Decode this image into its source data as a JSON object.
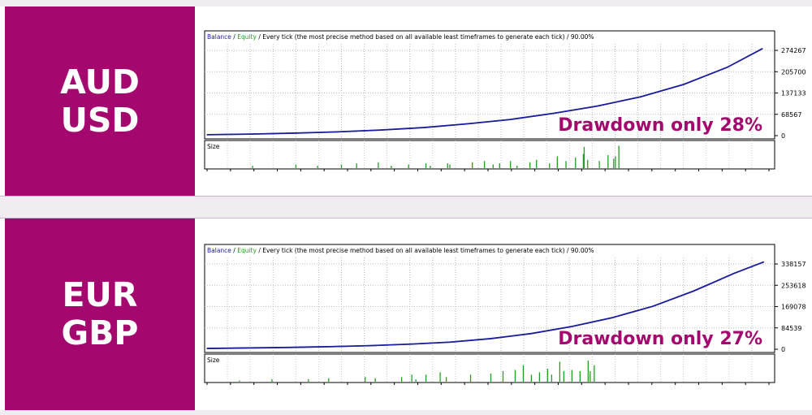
{
  "colors": {
    "brand": "#a4086f",
    "balance": "#1b1b9e",
    "equity": "#20a020",
    "drawdown_text": "#a4086f"
  },
  "header_parts": {
    "balance": "Balance",
    "sep": " / ",
    "equity": "Equity",
    "rest": " / Every tick (the most precise method based on all available least timeframes to generate each tick) / 90.00%"
  },
  "panels": [
    {
      "pair_line1": "AUD",
      "pair_line2": "USD",
      "drawdown_text": "Drawdown only 28%",
      "size_label": "Size"
    },
    {
      "pair_line1": "EUR",
      "pair_line2": "GBP",
      "drawdown_text": "Drawdown only 27%",
      "size_label": "Size"
    }
  ],
  "chart_data": [
    {
      "type": "line",
      "title": "Balance / Equity / Every tick (the most precise method based on all available least timeframes to generate each tick) / 90.00%",
      "series": [
        {
          "name": "Balance",
          "x": [
            0,
            100,
            200,
            300,
            400,
            500,
            600,
            700,
            800,
            900,
            1000,
            1100,
            1200,
            1281
          ],
          "y": [
            3000,
            5000,
            8000,
            12000,
            18000,
            26000,
            38000,
            52000,
            72000,
            95000,
            125000,
            165000,
            220000,
            280000
          ]
        },
        {
          "name": "Equity",
          "x": [
            0,
            100,
            200,
            300,
            400,
            500,
            600,
            700,
            800,
            900,
            1000,
            1100,
            1200,
            1281
          ],
          "y": [
            3000,
            5000,
            8000,
            12000,
            18000,
            26000,
            38000,
            52000,
            72000,
            95000,
            125000,
            165000,
            220000,
            280000
          ]
        }
      ],
      "ylim": [
        0,
        285000
      ],
      "xlim": [
        0,
        1300
      ],
      "yticks": [
        "274267",
        "205700",
        "137133",
        "68567",
        "0"
      ],
      "xticks": [
        "0",
        "60",
        "113",
        "166",
        "219",
        "272",
        "325",
        "378",
        "431",
        "484",
        "537",
        "591",
        "644",
        "697",
        "750",
        "803",
        "856",
        "909",
        "962",
        "1015",
        "1068",
        "1121",
        "1174",
        "1228",
        "1281"
      ],
      "size_subplot": {
        "label": "Size",
        "x": [
          105,
          205,
          255,
          310,
          345,
          395,
          425,
          465,
          505,
          515,
          555,
          560,
          612,
          640,
          660,
          675,
          700,
          715,
          745,
          760,
          790,
          808,
          828,
          850,
          868,
          870,
          878,
          905,
          925,
          938,
          942,
          950
        ],
        "values": [
          0.1,
          0.15,
          0.1,
          0.15,
          0.2,
          0.25,
          0.1,
          0.15,
          0.2,
          0.1,
          0.2,
          0.15,
          0.25,
          0.3,
          0.15,
          0.2,
          0.3,
          0.1,
          0.25,
          0.35,
          0.2,
          0.5,
          0.3,
          0.45,
          0.6,
          0.9,
          0.35,
          0.3,
          0.55,
          0.4,
          0.5,
          0.95
        ]
      },
      "grid": true
    },
    {
      "type": "line",
      "title": "Balance / Equity / Every tick (the most precise method based on all available least timeframes to generate each tick) / 90.00%",
      "series": [
        {
          "name": "Balance",
          "x": [
            0,
            100,
            200,
            300,
            400,
            500,
            600,
            700,
            800,
            900,
            1000,
            1100,
            1200,
            1300,
            1373
          ],
          "y": [
            3000,
            5000,
            7000,
            10000,
            14000,
            20000,
            28000,
            42000,
            62000,
            90000,
            125000,
            170000,
            230000,
            300000,
            345000
          ]
        },
        {
          "name": "Equity",
          "x": [
            0,
            100,
            200,
            300,
            400,
            500,
            600,
            700,
            800,
            900,
            1000,
            1100,
            1200,
            1300,
            1373
          ],
          "y": [
            3000,
            5000,
            7000,
            10000,
            14000,
            20000,
            28000,
            42000,
            62000,
            90000,
            125000,
            170000,
            230000,
            300000,
            345000
          ]
        }
      ],
      "ylim": [
        0,
        350000
      ],
      "xlim": [
        0,
        1390
      ],
      "yticks": [
        "338157",
        "253618",
        "169078",
        "84539",
        "0"
      ],
      "xticks": [
        "0",
        "64",
        "121",
        "178",
        "235",
        "292",
        "349",
        "406",
        "462",
        "519",
        "576",
        "633",
        "690",
        "747",
        "804",
        "861",
        "918",
        "974",
        "1031",
        "1088",
        "1145",
        "1202",
        "1259",
        "1316",
        "1373"
      ],
      "size_subplot": {
        "label": "Size",
        "x": [
          80,
          160,
          250,
          300,
          390,
          415,
          480,
          505,
          515,
          540,
          575,
          590,
          650,
          700,
          730,
          760,
          780,
          800,
          820,
          840,
          850,
          870,
          880,
          900,
          920,
          940,
          945,
          955
        ],
        "values": [
          0.05,
          0.1,
          0.1,
          0.15,
          0.2,
          0.15,
          0.2,
          0.3,
          0.1,
          0.3,
          0.4,
          0.2,
          0.3,
          0.35,
          0.45,
          0.5,
          0.7,
          0.3,
          0.4,
          0.55,
          0.3,
          0.85,
          0.45,
          0.5,
          0.45,
          0.9,
          0.45,
          0.7
        ]
      },
      "grid": true
    }
  ]
}
